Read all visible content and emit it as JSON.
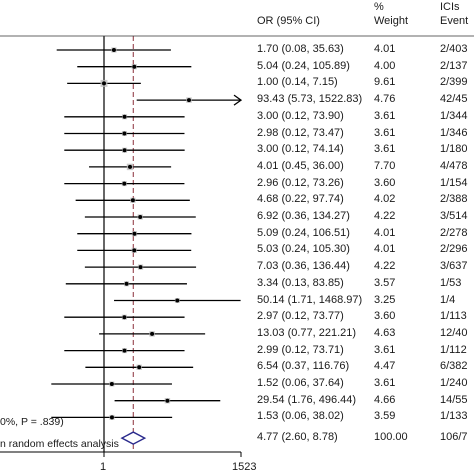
{
  "header": {
    "or_label": "OR (95% CI)",
    "pct_label": "%",
    "weight_label": "Weight",
    "ici_label": "ICIs",
    "events_label": "Event"
  },
  "summary_label": "0%, P = .839)",
  "footnote": "n random effects analysis",
  "axis": {
    "ticks": [
      "1",
      "1523"
    ]
  },
  "chart_data": {
    "type": "forest",
    "scale": "log",
    "xlim": [
      0.0006566,
      1523
    ],
    "reference_line": 1,
    "pooled_line": 4.77,
    "rows": [
      {
        "or": 1.7,
        "lo": 0.08,
        "hi": 35.63,
        "ci_text": "1.70 (0.08, 35.63)",
        "weight": "4.01",
        "events": "2/403"
      },
      {
        "or": 5.04,
        "lo": 0.24,
        "hi": 105.89,
        "ci_text": "5.04 (0.24, 105.89)",
        "weight": "4.00",
        "events": "2/137"
      },
      {
        "or": 1.0,
        "lo": 0.14,
        "hi": 7.15,
        "ci_text": "1.00 (0.14, 7.15)",
        "weight": "9.61",
        "events": "2/399"
      },
      {
        "or": 93.43,
        "lo": 5.73,
        "hi": 1522.83,
        "ci_text": "93.43 (5.73, 1522.83)",
        "weight": "4.76",
        "events": "42/45",
        "arrow": true
      },
      {
        "or": 3.0,
        "lo": 0.12,
        "hi": 73.9,
        "ci_text": "3.00 (0.12, 73.90)",
        "weight": "3.61",
        "events": "1/344"
      },
      {
        "or": 2.98,
        "lo": 0.12,
        "hi": 73.47,
        "ci_text": "2.98 (0.12, 73.47)",
        "weight": "3.61",
        "events": "1/346"
      },
      {
        "or": 3.0,
        "lo": 0.12,
        "hi": 74.14,
        "ci_text": "3.00 (0.12, 74.14)",
        "weight": "3.61",
        "events": "1/180"
      },
      {
        "or": 4.01,
        "lo": 0.45,
        "hi": 36.0,
        "ci_text": "4.01 (0.45, 36.00)",
        "weight": "7.70",
        "events": "4/478"
      },
      {
        "or": 2.96,
        "lo": 0.12,
        "hi": 73.26,
        "ci_text": "2.96 (0.12, 73.26)",
        "weight": "3.60",
        "events": "1/154"
      },
      {
        "or": 4.68,
        "lo": 0.22,
        "hi": 97.74,
        "ci_text": "4.68 (0.22, 97.74)",
        "weight": "4.02",
        "events": "2/388"
      },
      {
        "or": 6.92,
        "lo": 0.36,
        "hi": 134.27,
        "ci_text": "6.92 (0.36, 134.27)",
        "weight": "4.22",
        "events": "3/514"
      },
      {
        "or": 5.09,
        "lo": 0.24,
        "hi": 106.51,
        "ci_text": "5.09 (0.24, 106.51)",
        "weight": "4.01",
        "events": "2/278"
      },
      {
        "or": 5.03,
        "lo": 0.24,
        "hi": 105.3,
        "ci_text": "5.03 (0.24, 105.30)",
        "weight": "4.01",
        "events": "2/296"
      },
      {
        "or": 7.03,
        "lo": 0.36,
        "hi": 136.44,
        "ci_text": "7.03 (0.36, 136.44)",
        "weight": "4.22",
        "events": "3/637"
      },
      {
        "or": 3.34,
        "lo": 0.13,
        "hi": 83.85,
        "ci_text": "3.34 (0.13, 83.85)",
        "weight": "3.57",
        "events": "1/53"
      },
      {
        "or": 50.14,
        "lo": 1.71,
        "hi": 1468.97,
        "ci_text": "50.14 (1.71, 1468.97)",
        "weight": "3.25",
        "events": "1/4"
      },
      {
        "or": 2.97,
        "lo": 0.12,
        "hi": 73.77,
        "ci_text": "2.97 (0.12, 73.77)",
        "weight": "3.60",
        "events": "1/113"
      },
      {
        "or": 13.03,
        "lo": 0.77,
        "hi": 221.21,
        "ci_text": "13.03 (0.77, 221.21)",
        "weight": "4.63",
        "events": "12/40"
      },
      {
        "or": 2.99,
        "lo": 0.12,
        "hi": 73.71,
        "ci_text": "2.99 (0.12, 73.71)",
        "weight": "3.61",
        "events": "1/112"
      },
      {
        "or": 6.54,
        "lo": 0.37,
        "hi": 116.76,
        "ci_text": "6.54 (0.37, 116.76)",
        "weight": "4.47",
        "events": "6/382"
      },
      {
        "or": 1.52,
        "lo": 0.06,
        "hi": 37.64,
        "ci_text": "1.52 (0.06, 37.64)",
        "weight": "3.61",
        "events": "1/240"
      },
      {
        "or": 29.54,
        "lo": 1.76,
        "hi": 496.44,
        "ci_text": "29.54 (1.76, 496.44)",
        "weight": "4.66",
        "events": "14/55"
      },
      {
        "or": 1.53,
        "lo": 0.06,
        "hi": 38.02,
        "ci_text": "1.53 (0.06, 38.02)",
        "weight": "3.59",
        "events": "1/133"
      }
    ],
    "pooled": {
      "or": 4.77,
      "lo": 2.6,
      "hi": 8.78,
      "ci_text": "4.77 (2.60, 8.78)",
      "weight": "100.00",
      "events": "106/7"
    },
    "colors": {
      "line": "#000000",
      "pooled_line": "#8b2e3a",
      "diamond": "#2a2a8c",
      "box": "#bdbdbd"
    }
  }
}
